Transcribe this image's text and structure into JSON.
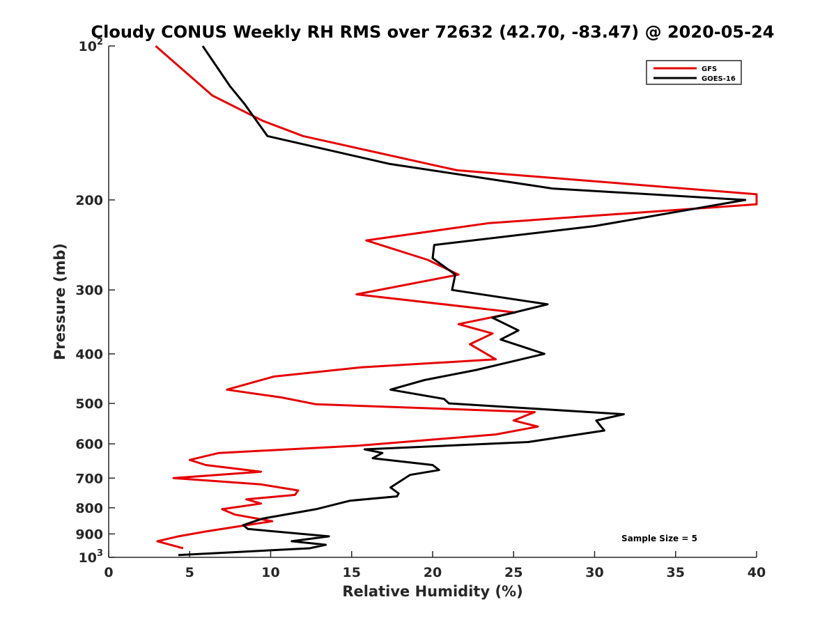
{
  "chart_data": {
    "type": "line",
    "title": "Cloudy CONUS Weekly RH RMS over 72632 (42.70, -83.47) @ 2020-05-24",
    "xlabel": "Relative Humidity (%)",
    "ylabel": "Pressure (mb)",
    "xlim": [
      0,
      40
    ],
    "ylim": [
      100,
      1000
    ],
    "yscale": "log",
    "y_reversed": false,
    "grid": false,
    "legend_position": "top-right",
    "x_ticks": [
      "0",
      "5",
      "10",
      "15",
      "20",
      "25",
      "30",
      "35",
      "40"
    ],
    "y_ticks": [
      {
        "value": 100,
        "base": "10",
        "exp": "2"
      },
      {
        "value": 200,
        "label": "200"
      },
      {
        "value": 300,
        "label": "300"
      },
      {
        "value": 400,
        "label": "400"
      },
      {
        "value": 500,
        "label": "500"
      },
      {
        "value": 600,
        "label": "600"
      },
      {
        "value": 700,
        "label": "700"
      },
      {
        "value": 800,
        "label": "800"
      },
      {
        "value": 900,
        "label": "900"
      },
      {
        "value": 1000,
        "base": "10",
        "exp": "3"
      }
    ],
    "series": [
      {
        "name": "GFS",
        "color": "#e60000",
        "points": [
          [
            2.9,
            100
          ],
          [
            6.4,
            125
          ],
          [
            9.5,
            140
          ],
          [
            12.0,
            150
          ],
          [
            21.5,
            175
          ],
          [
            40.0,
            195
          ],
          [
            40.0,
            204
          ],
          [
            23.5,
            222
          ],
          [
            15.9,
            240
          ],
          [
            19.7,
            262
          ],
          [
            21.6,
            280
          ],
          [
            15.3,
            306
          ],
          [
            25.1,
            332
          ],
          [
            21.6,
            350
          ],
          [
            23.7,
            365
          ],
          [
            22.3,
            383
          ],
          [
            23.9,
            410
          ],
          [
            15.6,
            425
          ],
          [
            10.2,
            443
          ],
          [
            7.3,
            470
          ],
          [
            10.7,
            487
          ],
          [
            12.8,
            502
          ],
          [
            26.3,
            520
          ],
          [
            25.0,
            540
          ],
          [
            26.5,
            555
          ],
          [
            23.9,
            575
          ],
          [
            15.4,
            605
          ],
          [
            6.8,
            625
          ],
          [
            5.0,
            645
          ],
          [
            6.0,
            660
          ],
          [
            9.4,
            680
          ],
          [
            4.0,
            700
          ],
          [
            9.4,
            720
          ],
          [
            11.7,
            740
          ],
          [
            11.5,
            755
          ],
          [
            8.5,
            770
          ],
          [
            9.4,
            785
          ],
          [
            7.0,
            805
          ],
          [
            7.8,
            825
          ],
          [
            10.1,
            850
          ],
          [
            8.0,
            870
          ],
          [
            6.0,
            890
          ],
          [
            4.3,
            910
          ],
          [
            3.0,
            930
          ],
          [
            4.6,
            960
          ]
        ]
      },
      {
        "name": "GOES-16",
        "color": "#000000",
        "points": [
          [
            5.8,
            100
          ],
          [
            7.5,
            120
          ],
          [
            8.4,
            130
          ],
          [
            9.8,
            150
          ],
          [
            17.3,
            170
          ],
          [
            27.4,
            190
          ],
          [
            39.3,
            200
          ],
          [
            30.0,
            225
          ],
          [
            20.1,
            245
          ],
          [
            20.0,
            260
          ],
          [
            21.4,
            280
          ],
          [
            21.2,
            300
          ],
          [
            27.1,
            320
          ],
          [
            23.7,
            340
          ],
          [
            25.3,
            360
          ],
          [
            24.2,
            375
          ],
          [
            26.9,
            400
          ],
          [
            22.7,
            430
          ],
          [
            19.5,
            450
          ],
          [
            17.4,
            470
          ],
          [
            20.7,
            490
          ],
          [
            21.0,
            500
          ],
          [
            31.8,
            525
          ],
          [
            30.1,
            540
          ],
          [
            30.6,
            565
          ],
          [
            25.9,
            595
          ],
          [
            15.8,
            615
          ],
          [
            16.9,
            625
          ],
          [
            16.3,
            640
          ],
          [
            20.0,
            660
          ],
          [
            20.4,
            675
          ],
          [
            18.6,
            690
          ],
          [
            17.4,
            730
          ],
          [
            17.9,
            750
          ],
          [
            17.8,
            760
          ],
          [
            14.9,
            775
          ],
          [
            12.8,
            805
          ],
          [
            9.5,
            840
          ],
          [
            8.3,
            865
          ],
          [
            8.6,
            880
          ],
          [
            13.6,
            910
          ],
          [
            11.3,
            930
          ],
          [
            13.4,
            945
          ],
          [
            12.4,
            960
          ],
          [
            4.3,
            990
          ]
        ]
      }
    ],
    "annotations": [
      {
        "text": "Sample Size = 5",
        "x": 34.0,
        "y": 930
      }
    ]
  }
}
